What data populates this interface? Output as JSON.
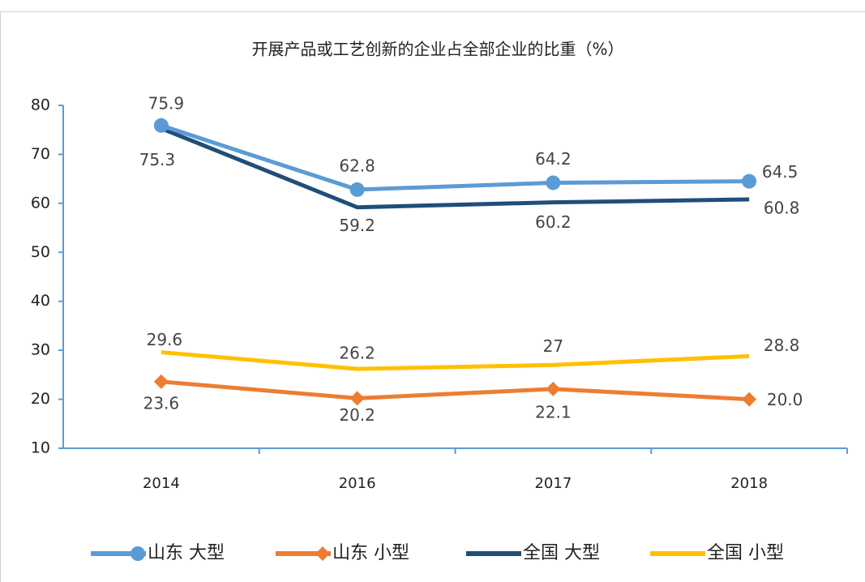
{
  "chart_data": {
    "type": "line",
    "title": "开展产品或工艺创新的企业占全部企业的比重（%）",
    "categories": [
      "2014",
      "2016",
      "2017",
      "2018"
    ],
    "ylim": [
      10,
      80
    ],
    "yticks": [
      10,
      20,
      30,
      40,
      50,
      60,
      70,
      80
    ],
    "legend": "bottom",
    "series": [
      {
        "name": "山东 大型",
        "color": "#5b9bd5",
        "marker": "circle",
        "values": [
          75.9,
          62.8,
          64.2,
          64.5
        ]
      },
      {
        "name": "山东 小型",
        "color": "#ed7d31",
        "marker": "diamond",
        "values": [
          23.6,
          20.2,
          22.1,
          20.0
        ],
        "value_labels": [
          "23.6",
          "20.2",
          "22.1",
          "20.0"
        ]
      },
      {
        "name": "全国 大型",
        "color": "#1f4e79",
        "marker": "none",
        "values": [
          75.3,
          59.2,
          60.2,
          60.8
        ]
      },
      {
        "name": "全国 小型",
        "color": "#ffc000",
        "marker": "none",
        "values": [
          29.6,
          26.2,
          27,
          28.8
        ]
      }
    ]
  }
}
